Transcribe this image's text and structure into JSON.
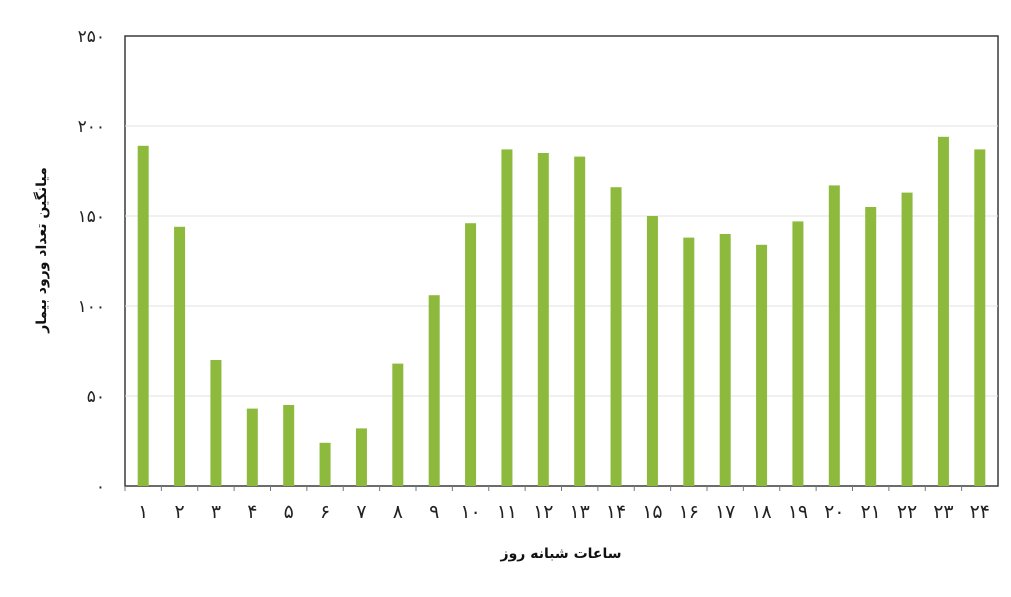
{
  "chart_data": {
    "type": "bar",
    "xlabel": "ساعات شبانه روز",
    "ylabel": "میانگین تعداد ورود بیمار",
    "ylim": [
      0,
      250
    ],
    "yticks": [
      0,
      50,
      100,
      150,
      200,
      250
    ],
    "ytick_labels": [
      "۰",
      "۵۰",
      "۱۰۰",
      "۱۵۰",
      "۲۰۰",
      "۲۵۰"
    ],
    "grid": true,
    "bar_color": "#8dba3c",
    "categories": [
      "۱",
      "۲",
      "۳",
      "۴",
      "۵",
      "۶",
      "۷",
      "۸",
      "۹",
      "۱۰",
      "۱۱",
      "۱۲",
      "۱۳",
      "۱۴",
      "۱۵",
      "۱۶",
      "۱۷",
      "۱۸",
      "۱۹",
      "۲۰",
      "۲۱",
      "۲۲",
      "۲۳",
      "۲۴"
    ],
    "values": [
      189,
      144,
      70,
      43,
      45,
      24,
      32,
      68,
      106,
      146,
      187,
      185,
      183,
      166,
      150,
      138,
      140,
      134,
      147,
      167,
      155,
      163,
      194,
      187
    ]
  }
}
